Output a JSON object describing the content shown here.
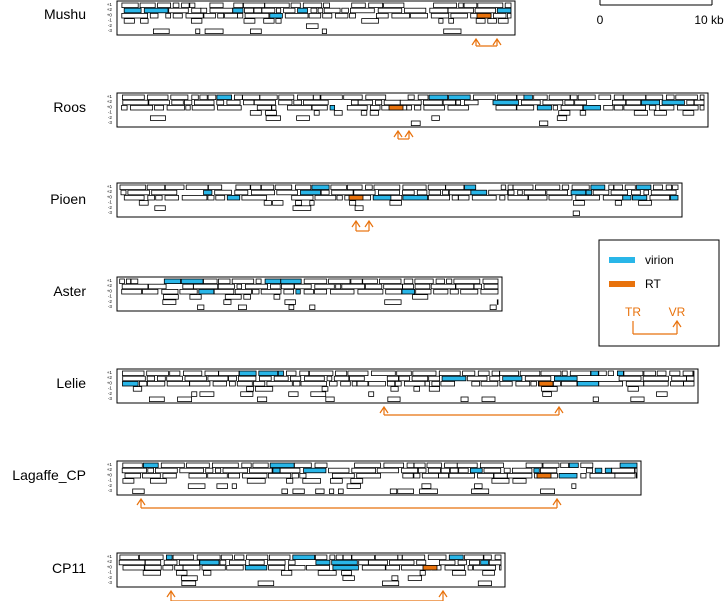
{
  "scale_bar": {
    "start_label": "0",
    "end_label": "10 kb"
  },
  "frame_labels": [
    "+1",
    "+2",
    "+0",
    "-1",
    "-2",
    "-3"
  ],
  "legend": {
    "items": [
      {
        "label": "virion",
        "color": "#29B6E8"
      },
      {
        "label": "RT",
        "color": "#E8720C"
      }
    ],
    "tr_label": "TR",
    "vr_label": "VR"
  },
  "colors": {
    "virion": "#29B6E8",
    "rt": "#E8720C",
    "outline": "#000000"
  },
  "genomes": [
    {
      "name": "Mushu"
    },
    {
      "name": "Roos"
    },
    {
      "name": "Pioen"
    },
    {
      "name": "Aster"
    },
    {
      "name": "Lelie"
    },
    {
      "name": "Lagaffe_CP"
    },
    {
      "name": "CP11"
    }
  ]
}
